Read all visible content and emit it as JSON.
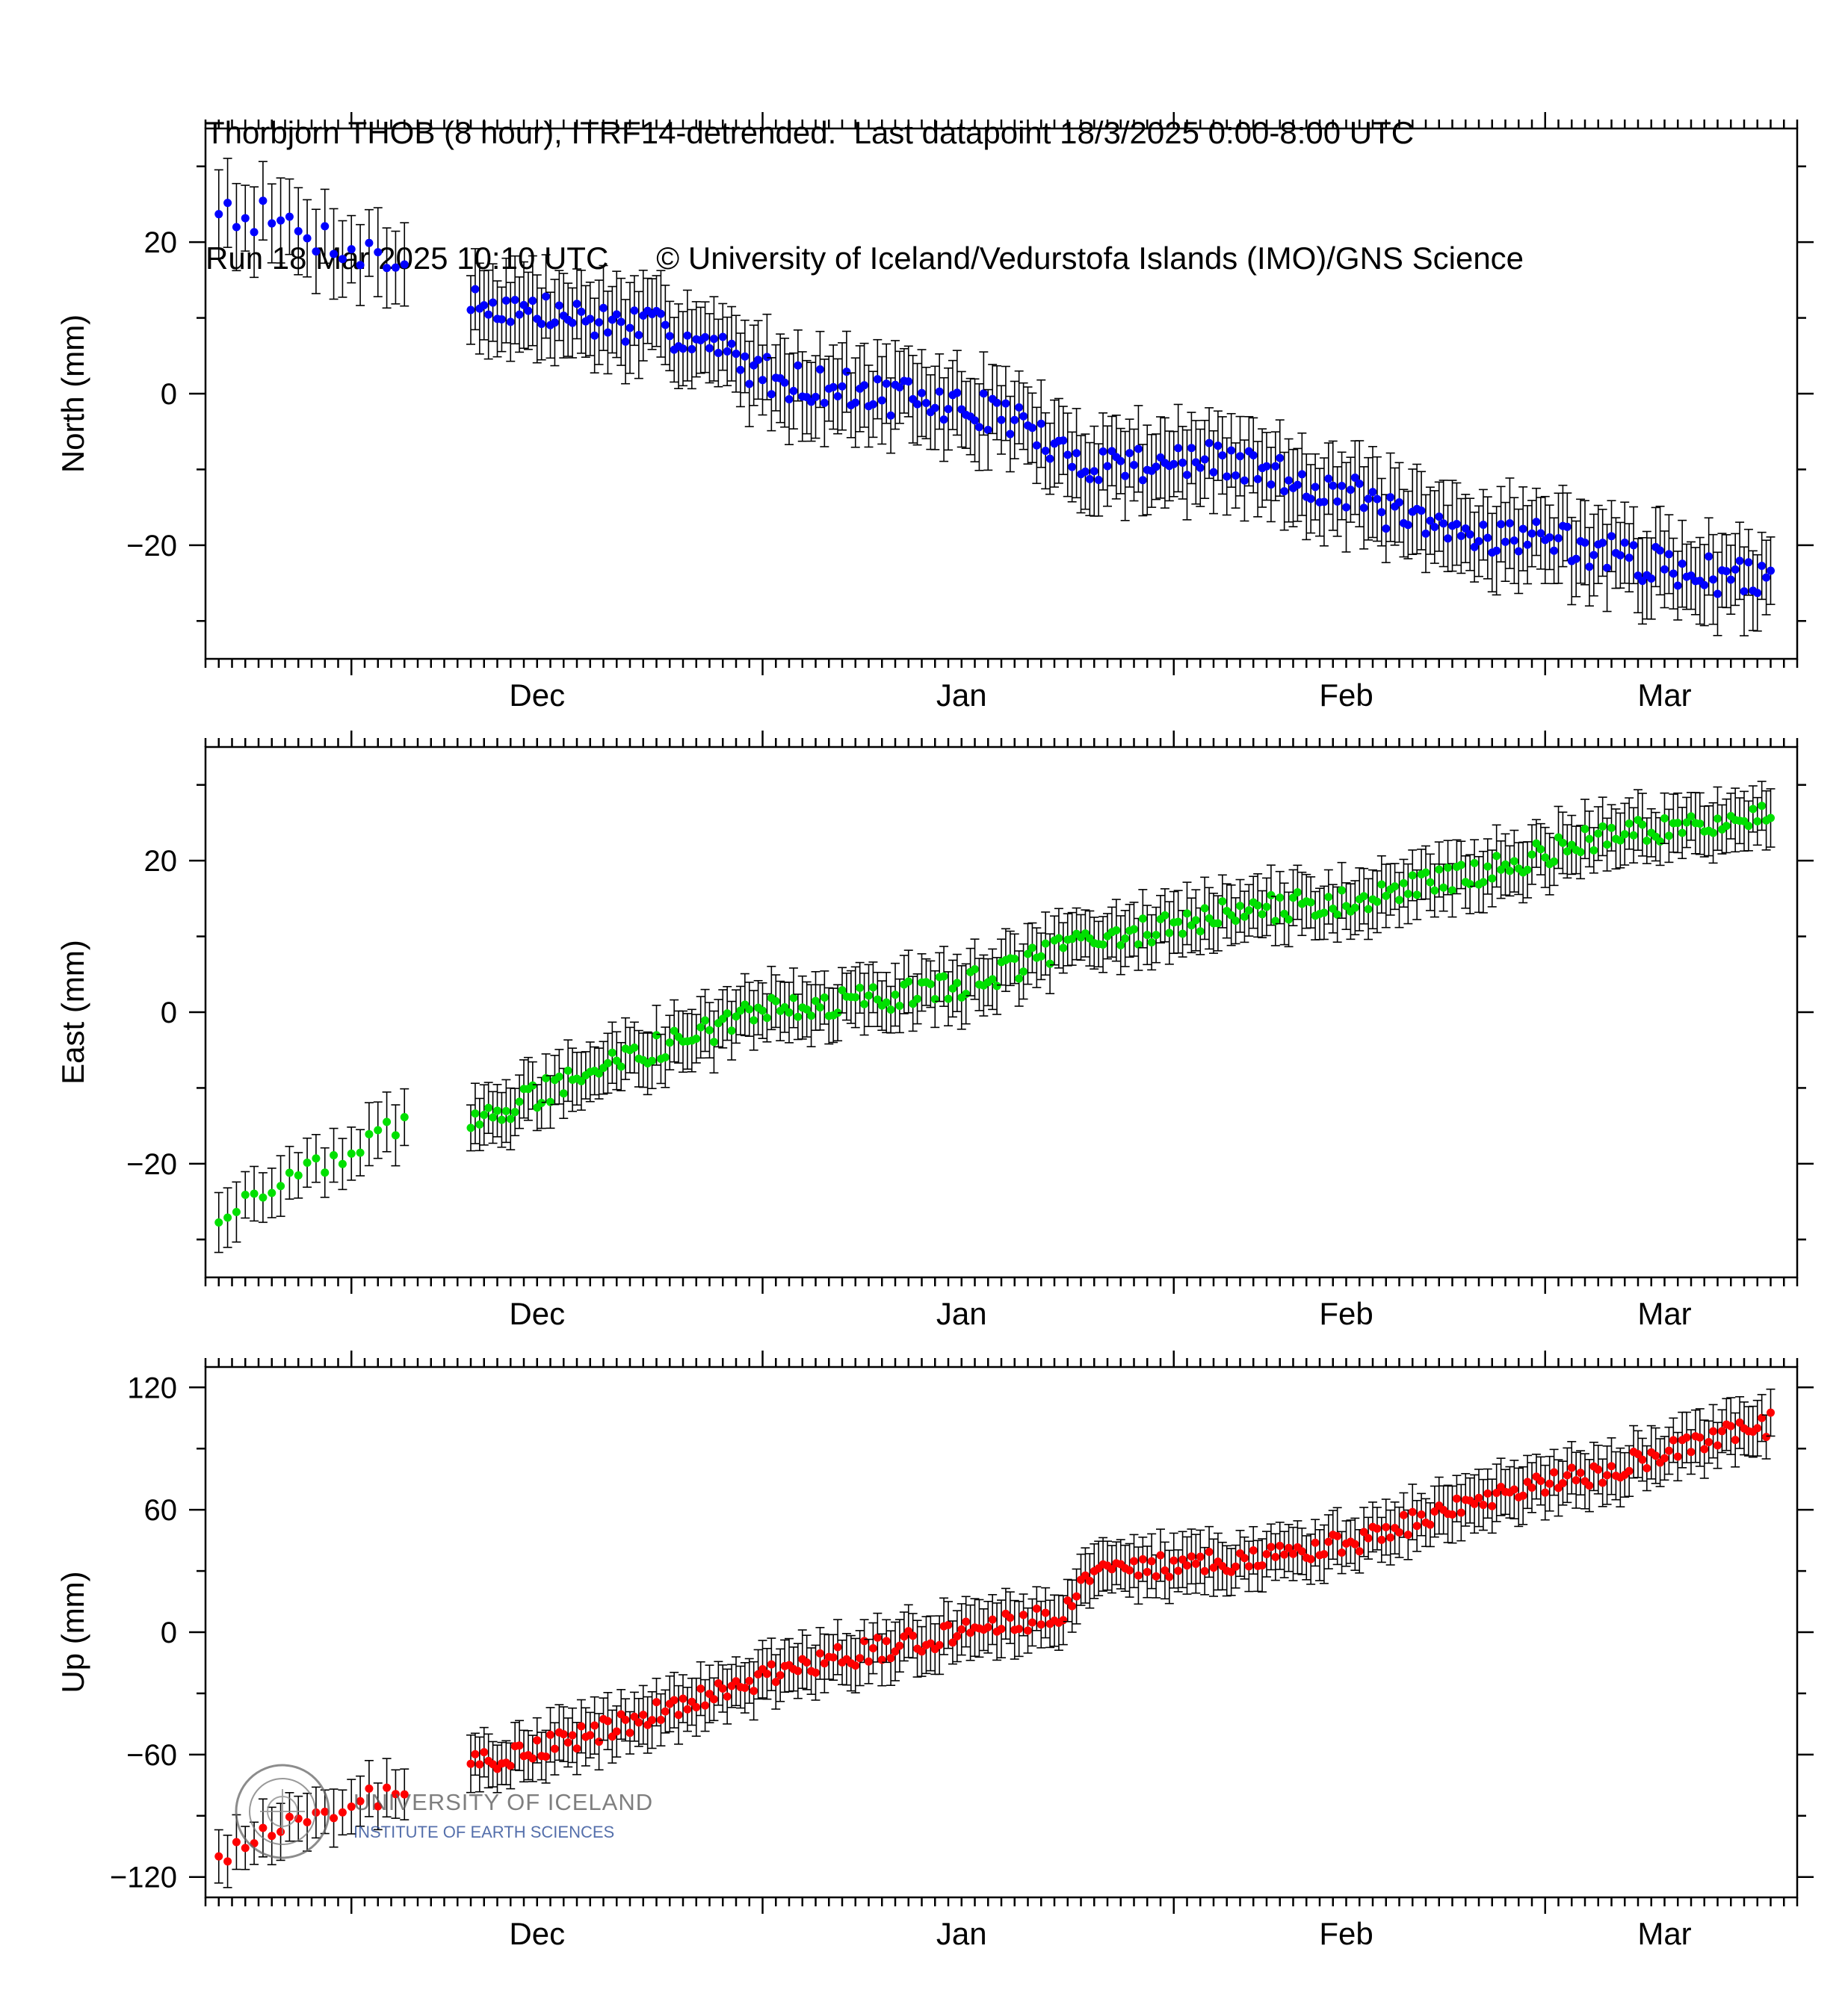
{
  "title": {
    "line1": "Thorbjorn THOB (8 hour), ITRF14-detrended.  Last datapoint 18/3/2025 0:00-8:00 UTC",
    "line2_left": "Run 18 Mar 2025 10:10 UTC",
    "line2_right": "© University of Iceland/Vedurstofa Islands (IMO)/GNS Science"
  },
  "logo": {
    "line1": "UNIVERSITY OF ICELAND",
    "line2": "INSTITUTE OF EARTH SCIENCES"
  },
  "colors": {
    "north": "#0000ff",
    "east": "#00e000",
    "up": "#ff0000",
    "errorbar": "#000000"
  },
  "chart_data": [
    {
      "type": "scatter",
      "ylabel": "North (mm)",
      "ylim": [
        -35,
        35
      ],
      "yticks": [
        -20,
        0,
        20
      ],
      "xlim": [
        "2024-11-20",
        "2025-03-20"
      ],
      "xtick_labels": [
        "Dec",
        "Jan",
        "Feb",
        "Mar"
      ],
      "grid": false,
      "color": "north",
      "error_mm": 5,
      "gap": [
        "2024-12-05",
        "2024-12-10"
      ],
      "anchors": [
        [
          "2024-11-21",
          25
        ],
        [
          "2024-12-05",
          17
        ],
        [
          "2024-12-10",
          12
        ],
        [
          "2024-12-26",
          8
        ],
        [
          "2025-01-02",
          2
        ],
        [
          "2025-01-20",
          -3
        ],
        [
          "2025-01-24",
          -9
        ],
        [
          "2025-02-05",
          -9
        ],
        [
          "2025-02-14",
          -13
        ],
        [
          "2025-02-20",
          -18
        ],
        [
          "2025-03-01",
          -19
        ],
        [
          "2025-03-10",
          -23
        ],
        [
          "2025-03-18",
          -25
        ]
      ],
      "noise_mm": 2.5
    },
    {
      "type": "scatter",
      "ylabel": "East (mm)",
      "ylim": [
        -35,
        35
      ],
      "yticks": [
        -20,
        0,
        20
      ],
      "xlim": [
        "2024-11-20",
        "2025-03-20"
      ],
      "xtick_labels": [
        "Dec",
        "Jan",
        "Feb",
        "Mar"
      ],
      "grid": false,
      "color": "east",
      "error_mm": 3.5,
      "gap": [
        "2024-12-05",
        "2024-12-10"
      ],
      "anchors": [
        [
          "2024-11-21",
          -27
        ],
        [
          "2024-12-05",
          -15
        ],
        [
          "2024-12-10",
          -15
        ],
        [
          "2024-12-20",
          -7
        ],
        [
          "2025-01-01",
          0
        ],
        [
          "2025-01-15",
          3
        ],
        [
          "2025-01-25",
          9
        ],
        [
          "2025-02-05",
          13
        ],
        [
          "2025-02-15",
          15
        ],
        [
          "2025-02-25",
          19
        ],
        [
          "2025-03-05",
          23
        ],
        [
          "2025-03-18",
          26
        ]
      ],
      "noise_mm": 1.8
    },
    {
      "type": "scatter",
      "ylabel": "Up (mm)",
      "ylim": [
        -130,
        130
      ],
      "yticks": [
        -120,
        -60,
        0,
        60,
        120
      ],
      "xlim": [
        "2024-11-20",
        "2025-03-20"
      ],
      "xtick_labels": [
        "Dec",
        "Jan",
        "Feb",
        "Mar"
      ],
      "grid": false,
      "color": "up",
      "error_mm": 12,
      "gap": [
        "2024-12-05",
        "2024-12-10"
      ],
      "anchors": [
        [
          "2024-11-21",
          -108
        ],
        [
          "2024-12-05",
          -75
        ],
        [
          "2024-12-10",
          -65
        ],
        [
          "2024-12-20",
          -48
        ],
        [
          "2025-01-01",
          -22
        ],
        [
          "2025-01-12",
          -5
        ],
        [
          "2025-01-24",
          10
        ],
        [
          "2025-01-25",
          28
        ],
        [
          "2025-02-05",
          35
        ],
        [
          "2025-02-15",
          45
        ],
        [
          "2025-02-25",
          65
        ],
        [
          "2025-03-05",
          78
        ],
        [
          "2025-03-18",
          102
        ]
      ],
      "noise_mm": 6
    }
  ]
}
